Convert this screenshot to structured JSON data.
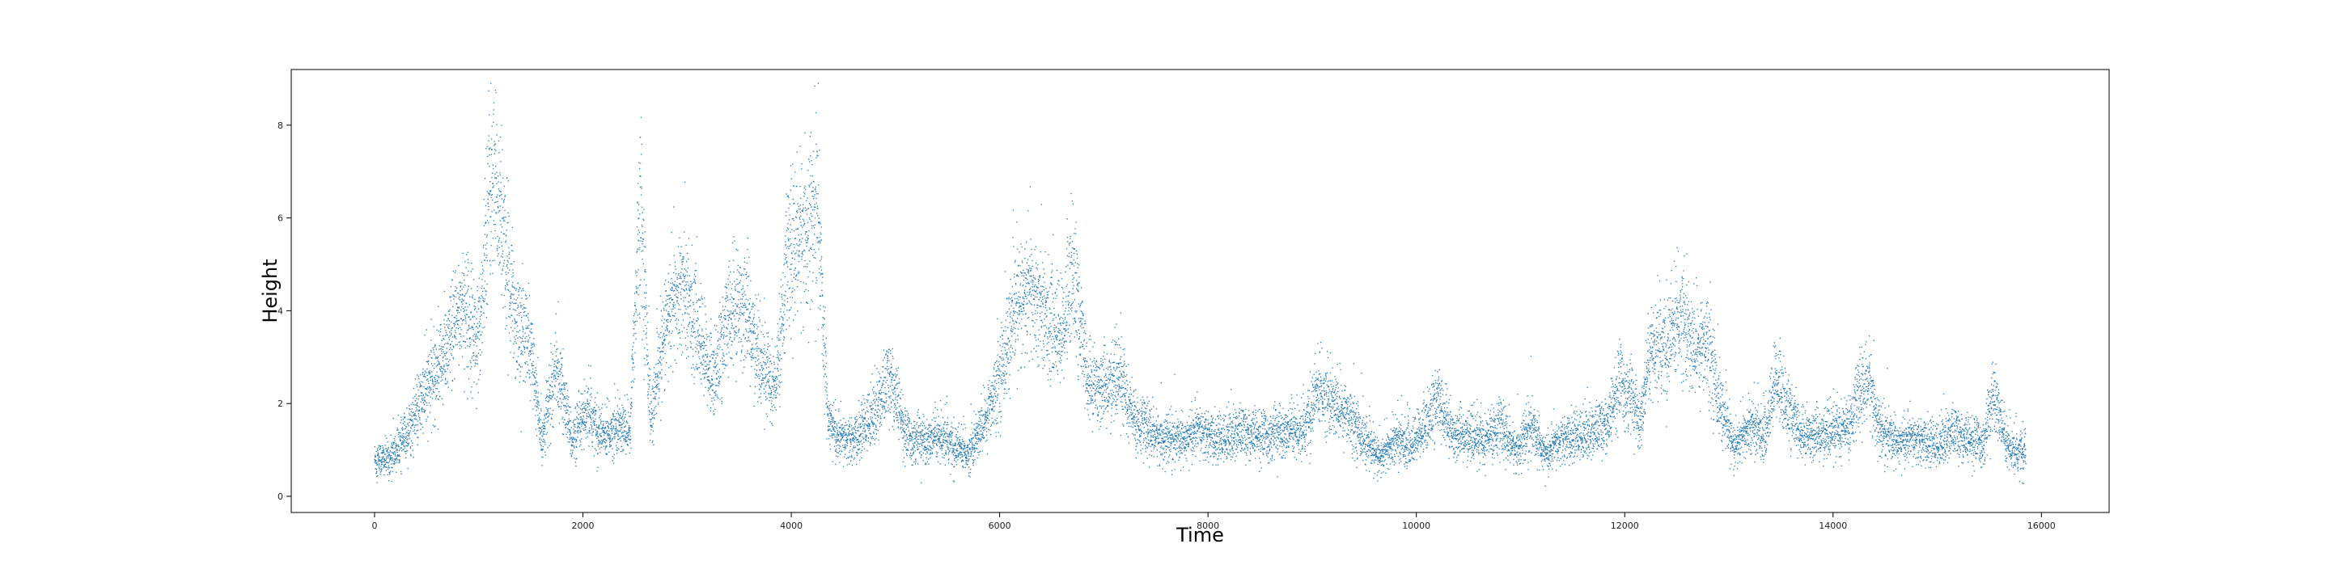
{
  "chart_data": {
    "type": "scatter",
    "title": "",
    "xlabel": "Time",
    "ylabel": "Height",
    "xlim": [
      -800,
      16650
    ],
    "ylim": [
      -0.35,
      9.2
    ],
    "xticks": [
      0,
      2000,
      4000,
      6000,
      8000,
      10000,
      12000,
      14000,
      16000
    ],
    "xtick_labels": [
      "0",
      "2000",
      "4000",
      "6000",
      "8000",
      "10000",
      "12000",
      "14000",
      "16000"
    ],
    "yticks": [
      0,
      2,
      4,
      6,
      8
    ],
    "ytick_labels": [
      "0",
      "2",
      "4",
      "6",
      "8"
    ],
    "grid": false,
    "legend": "none",
    "marker_color": "#1f77b4",
    "n_points": 16000,
    "x_range": [
      0,
      15850
    ],
    "trend": {
      "x": [
        0,
        150,
        300,
        500,
        700,
        850,
        1000,
        1100,
        1200,
        1350,
        1500,
        1600,
        1750,
        1900,
        2050,
        2200,
        2350,
        2450,
        2550,
        2650,
        2800,
        2950,
        3100,
        3250,
        3400,
        3550,
        3700,
        3850,
        3950,
        4050,
        4150,
        4250,
        4350,
        4450,
        4600,
        4800,
        4950,
        5100,
        5300,
        5500,
        5700,
        5850,
        6000,
        6150,
        6300,
        6450,
        6600,
        6700,
        6850,
        7000,
        7150,
        7300,
        7500,
        7700,
        7900,
        8100,
        8300,
        8500,
        8700,
        8900,
        9050,
        9200,
        9350,
        9500,
        9650,
        9800,
        9950,
        10100,
        10200,
        10350,
        10500,
        10650,
        10800,
        10950,
        11100,
        11250,
        11400,
        11550,
        11700,
        11850,
        11950,
        12050,
        12150,
        12250,
        12400,
        12550,
        12650,
        12800,
        12900,
        13050,
        13200,
        13350,
        13450,
        13550,
        13700,
        13850,
        14000,
        14150,
        14250,
        14350,
        14450,
        14600,
        14800,
        15000,
        15150,
        15300,
        15450,
        15550,
        15650,
        15750,
        15850
      ],
      "y": [
        0.8,
        0.8,
        1.3,
        2.3,
        3.2,
        4.2,
        3.3,
        6.8,
        6.3,
        3.8,
        3.2,
        1.2,
        2.8,
        1.2,
        1.8,
        1.3,
        1.5,
        1.4,
        6.6,
        1.6,
        3.7,
        4.5,
        3.6,
        2.5,
        3.9,
        4.1,
        2.9,
        2.3,
        4.8,
        5.5,
        5.8,
        6.3,
        1.8,
        1.2,
        1.2,
        1.8,
        2.6,
        1.3,
        1.2,
        1.2,
        0.9,
        1.6,
        2.6,
        4.0,
        4.4,
        3.8,
        3.5,
        5.0,
        2.4,
        2.3,
        2.6,
        1.6,
        1.3,
        1.2,
        1.4,
        1.2,
        1.4,
        1.3,
        1.4,
        1.3,
        2.3,
        2.0,
        1.8,
        1.2,
        0.8,
        1.2,
        1.1,
        1.6,
        2.1,
        1.3,
        1.3,
        1.2,
        1.5,
        1.0,
        1.5,
        0.9,
        1.2,
        1.3,
        1.4,
        1.6,
        2.5,
        2.2,
        1.6,
        3.0,
        3.3,
        3.9,
        3.2,
        3.4,
        2.1,
        1.0,
        1.5,
        1.3,
        2.6,
        2.0,
        1.3,
        1.3,
        1.4,
        1.5,
        2.2,
        2.5,
        1.4,
        1.2,
        1.2,
        1.1,
        1.4,
        1.2,
        1.2,
        2.3,
        1.1,
        0.9,
        1.1
      ]
    }
  }
}
